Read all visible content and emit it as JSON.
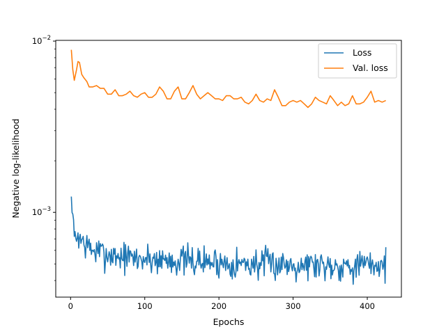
{
  "chart_data": {
    "type": "line",
    "title": "",
    "xlabel": "Epochs",
    "ylabel": "Negative log-likelihood",
    "xlim": [
      -20,
      446
    ],
    "ylim": [
      0.00032,
      0.0101
    ],
    "y_scale": "log",
    "grid": false,
    "legend_position": "top-right",
    "x_ticks": [
      0,
      100,
      200,
      300,
      400
    ],
    "y_ticks": [
      {
        "value": 0.001,
        "label": "10^-3"
      },
      {
        "value": 0.01,
        "label": "10^-2"
      }
    ],
    "series": [
      {
        "name": "Loss",
        "color": "#1f77b4",
        "anchors": [
          [
            1,
            0.00122
          ],
          [
            2,
            0.00098
          ],
          [
            3,
            0.00103
          ],
          [
            5,
            0.00072
          ],
          [
            7,
            0.00068
          ],
          [
            10,
            0.00075
          ],
          [
            13,
            0.0007
          ],
          [
            16,
            0.00068
          ],
          [
            20,
            0.00065
          ],
          [
            25,
            0.00062
          ],
          [
            30,
            0.0006
          ],
          [
            40,
            0.00058
          ],
          [
            60,
            0.00056
          ],
          [
            80,
            0.00054
          ],
          [
            120,
            0.00053
          ],
          [
            160,
            0.00052
          ],
          [
            200,
            0.00051
          ],
          [
            240,
            0.0005
          ],
          [
            280,
            0.0005
          ],
          [
            320,
            0.0005
          ],
          [
            360,
            0.00049
          ],
          [
            400,
            0.00049
          ],
          [
            425,
            0.0005
          ]
        ],
        "noise_amplitude": 0.075,
        "seed": 7
      },
      {
        "name": "Val. loss",
        "color": "#ff7f0e",
        "points": [
          [
            1,
            0.0089
          ],
          [
            3,
            0.0068
          ],
          [
            5,
            0.0059
          ],
          [
            8,
            0.0068
          ],
          [
            10,
            0.0076
          ],
          [
            12,
            0.0075
          ],
          [
            15,
            0.0064
          ],
          [
            18,
            0.0061
          ],
          [
            22,
            0.0058
          ],
          [
            25,
            0.0054
          ],
          [
            30,
            0.0054
          ],
          [
            35,
            0.0055
          ],
          [
            40,
            0.0053
          ],
          [
            45,
            0.0053
          ],
          [
            50,
            0.0049
          ],
          [
            55,
            0.0049
          ],
          [
            60,
            0.0052
          ],
          [
            65,
            0.0048
          ],
          [
            70,
            0.0048
          ],
          [
            75,
            0.0049
          ],
          [
            80,
            0.0051
          ],
          [
            85,
            0.0048
          ],
          [
            90,
            0.0047
          ],
          [
            95,
            0.0049
          ],
          [
            100,
            0.005
          ],
          [
            105,
            0.0047
          ],
          [
            110,
            0.0047
          ],
          [
            115,
            0.0049
          ],
          [
            120,
            0.0054
          ],
          [
            125,
            0.0051
          ],
          [
            130,
            0.0046
          ],
          [
            135,
            0.0046
          ],
          [
            140,
            0.0051
          ],
          [
            145,
            0.0054
          ],
          [
            150,
            0.0046
          ],
          [
            155,
            0.0046
          ],
          [
            160,
            0.005
          ],
          [
            165,
            0.0055
          ],
          [
            170,
            0.0049
          ],
          [
            175,
            0.0046
          ],
          [
            180,
            0.0048
          ],
          [
            185,
            0.005
          ],
          [
            190,
            0.0048
          ],
          [
            195,
            0.0046
          ],
          [
            200,
            0.0046
          ],
          [
            205,
            0.0045
          ],
          [
            210,
            0.0048
          ],
          [
            215,
            0.0048
          ],
          [
            220,
            0.0046
          ],
          [
            225,
            0.0046
          ],
          [
            230,
            0.0047
          ],
          [
            235,
            0.0044
          ],
          [
            240,
            0.0043
          ],
          [
            245,
            0.0045
          ],
          [
            250,
            0.0049
          ],
          [
            255,
            0.0045
          ],
          [
            260,
            0.0044
          ],
          [
            265,
            0.0046
          ],
          [
            270,
            0.0045
          ],
          [
            275,
            0.0052
          ],
          [
            280,
            0.0047
          ],
          [
            285,
            0.0042
          ],
          [
            290,
            0.0042
          ],
          [
            295,
            0.0044
          ],
          [
            300,
            0.0045
          ],
          [
            305,
            0.0044
          ],
          [
            310,
            0.0045
          ],
          [
            315,
            0.0043
          ],
          [
            320,
            0.0041
          ],
          [
            325,
            0.0043
          ],
          [
            330,
            0.0047
          ],
          [
            335,
            0.0045
          ],
          [
            340,
            0.0044
          ],
          [
            345,
            0.0043
          ],
          [
            350,
            0.0048
          ],
          [
            355,
            0.0045
          ],
          [
            360,
            0.0042
          ],
          [
            365,
            0.0044
          ],
          [
            370,
            0.0042
          ],
          [
            375,
            0.0043
          ],
          [
            380,
            0.0048
          ],
          [
            385,
            0.0043
          ],
          [
            390,
            0.0043
          ],
          [
            395,
            0.0044
          ],
          [
            400,
            0.0047
          ],
          [
            405,
            0.0051
          ],
          [
            410,
            0.0044
          ],
          [
            415,
            0.0045
          ],
          [
            420,
            0.0044
          ],
          [
            425,
            0.0045
          ]
        ]
      }
    ]
  }
}
